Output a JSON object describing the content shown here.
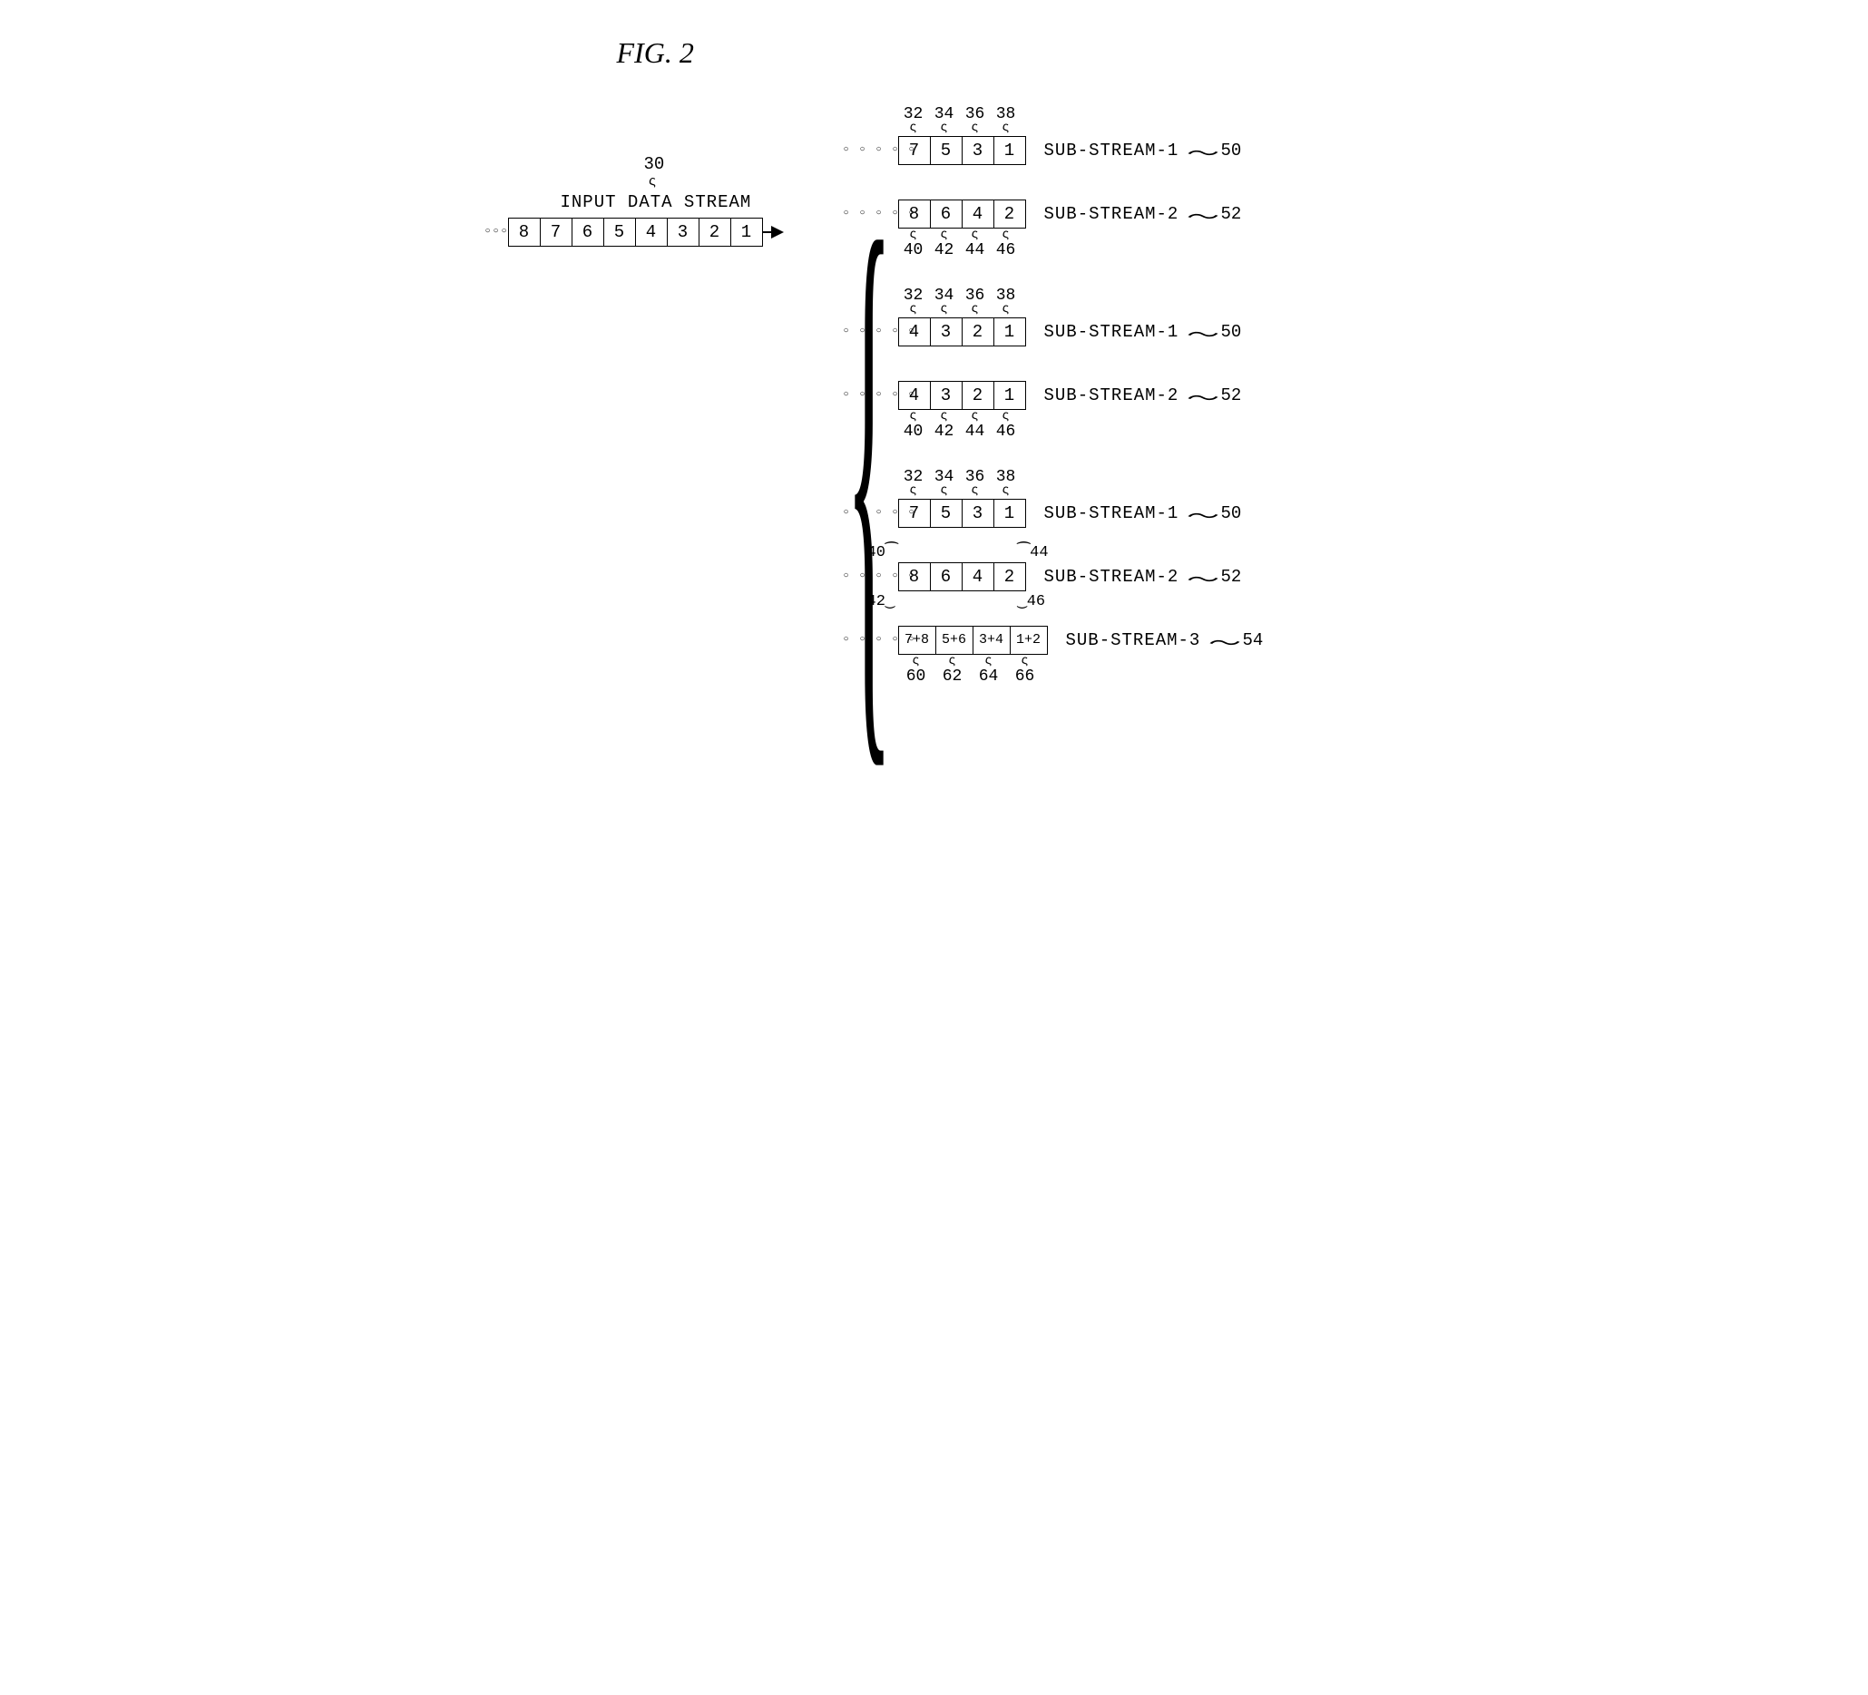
{
  "colors": {
    "fg": "#000000",
    "bg": "#ffffff"
  },
  "fig_title": "FIG. 2",
  "input": {
    "label": "INPUT DATA STREAM",
    "ref": "30",
    "cells": [
      "8",
      "7",
      "6",
      "5",
      "4",
      "3",
      "2",
      "1"
    ],
    "ellipsis": "○○○"
  },
  "groups": [
    {
      "rows": [
        {
          "cells": [
            "7",
            "5",
            "3",
            "1"
          ],
          "name": "SUB-STREAM-1",
          "ref": "50",
          "top_refs": [
            "32",
            "34",
            "36",
            "38"
          ],
          "ticks": "top"
        },
        {
          "cells": [
            "8",
            "6",
            "4",
            "2"
          ],
          "name": "SUB-STREAM-2",
          "ref": "52",
          "bot_refs": [
            "40",
            "42",
            "44",
            "46"
          ],
          "ticks": "bot"
        }
      ]
    },
    {
      "rows": [
        {
          "cells": [
            "4",
            "3",
            "2",
            "1"
          ],
          "name": "SUB-STREAM-1",
          "ref": "50",
          "top_refs": [
            "32",
            "34",
            "36",
            "38"
          ],
          "ticks": "top"
        },
        {
          "cells": [
            "4",
            "3",
            "2",
            "1"
          ],
          "name": "SUB-STREAM-2",
          "ref": "52",
          "bot_refs": [
            "40",
            "42",
            "44",
            "46"
          ],
          "ticks": "bot"
        }
      ]
    },
    {
      "rows": [
        {
          "cells": [
            "7",
            "5",
            "3",
            "1"
          ],
          "name": "SUB-STREAM-1",
          "ref": "50",
          "top_refs": [
            "32",
            "34",
            "36",
            "38"
          ],
          "ticks": "top"
        },
        {
          "cells": [
            "8",
            "6",
            "4",
            "2"
          ],
          "name": "SUB-STREAM-2",
          "ref": "52",
          "side_refs": {
            "tl": "40",
            "bl": "42",
            "tr": "44",
            "br": "46"
          }
        },
        {
          "cells": [
            "7+8",
            "5+6",
            "3+4",
            "1+2"
          ],
          "name": "SUB-STREAM-3",
          "ref": "54",
          "bot_refs": [
            "60",
            "62",
            "64",
            "66"
          ],
          "ticks": "bot",
          "small": true
        }
      ]
    }
  ]
}
